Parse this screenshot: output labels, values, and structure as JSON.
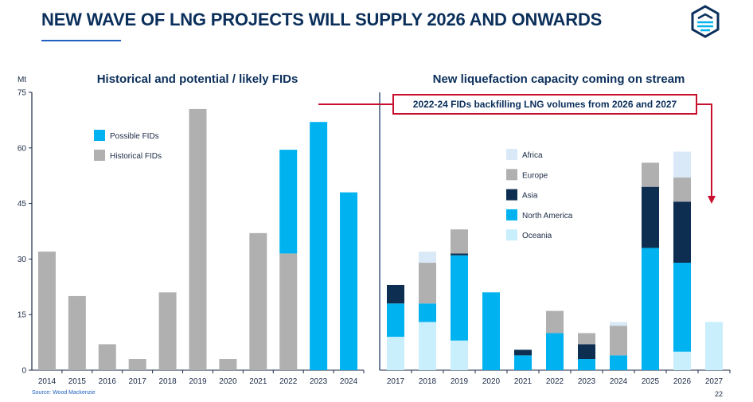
{
  "header": {
    "title": "NEW WAVE OF LNG PROJECTS WILL SUPPLY 2026 AND ONWARDS"
  },
  "footer": {
    "source": "Source: Wood Mackenzie",
    "page_number": "22"
  },
  "callout": {
    "text": "2022-24 FIDs backfilling LNG volumes from 2026 and 2027"
  },
  "colors": {
    "historical": "#b0b0b0",
    "possible": "#00b2f0",
    "africa": "#dae9f8",
    "europe": "#b0b0b0",
    "asia": "#0d2e50",
    "north_america": "#00b2f0",
    "oceania": "#c9eefc",
    "accent_red": "#c8102e",
    "title_navy": "#0b2f5b"
  },
  "chart_data": [
    {
      "type": "bar",
      "stacked": true,
      "title": "Historical and potential / likely FIDs",
      "ylabel": "Mt",
      "ylim": [
        0,
        75
      ],
      "yticks": [
        0,
        15,
        30,
        45,
        60,
        75
      ],
      "categories": [
        "2014",
        "2015",
        "2016",
        "2017",
        "2018",
        "2019",
        "2020",
        "2021",
        "2022",
        "2023",
        "2024"
      ],
      "series": [
        {
          "name": "Historical FIDs",
          "values": [
            32,
            20,
            7,
            3,
            21,
            70.5,
            3,
            37,
            31.5,
            0,
            0
          ]
        },
        {
          "name": "Possible FIDs",
          "values": [
            0,
            0,
            0,
            0,
            0,
            0,
            0,
            0,
            28,
            67,
            48
          ]
        }
      ],
      "legend": {
        "placement": "top-left",
        "order": [
          "Possible FIDs",
          "Historical FIDs"
        ]
      }
    },
    {
      "type": "bar",
      "stacked": true,
      "title": "New liquefaction capacity coming on stream",
      "ylim": [
        0,
        75
      ],
      "categories": [
        "2017",
        "2018",
        "2019",
        "2020",
        "2021",
        "2022",
        "2023",
        "2024",
        "2025",
        "2026",
        "2027"
      ],
      "series": [
        {
          "name": "Oceania",
          "values": [
            9,
            13,
            8,
            0,
            0,
            0,
            0,
            0,
            0,
            5,
            13
          ]
        },
        {
          "name": "North America",
          "values": [
            9,
            5,
            23,
            21,
            4,
            10,
            3,
            4,
            33,
            24,
            0
          ]
        },
        {
          "name": "Asia",
          "values": [
            5,
            0,
            0.5,
            0,
            1.5,
            0,
            4,
            0,
            16.5,
            16.5,
            0
          ]
        },
        {
          "name": "Europe",
          "values": [
            0,
            11,
            6.5,
            0,
            0,
            6,
            3,
            8,
            6.5,
            6.5,
            0
          ]
        },
        {
          "name": "Africa",
          "values": [
            0,
            3,
            0,
            0,
            0,
            0,
            0,
            1,
            0,
            7,
            0
          ]
        }
      ],
      "legend": {
        "placement": "top-center",
        "order": [
          "Africa",
          "Europe",
          "Asia",
          "North America",
          "Oceania"
        ]
      }
    }
  ]
}
